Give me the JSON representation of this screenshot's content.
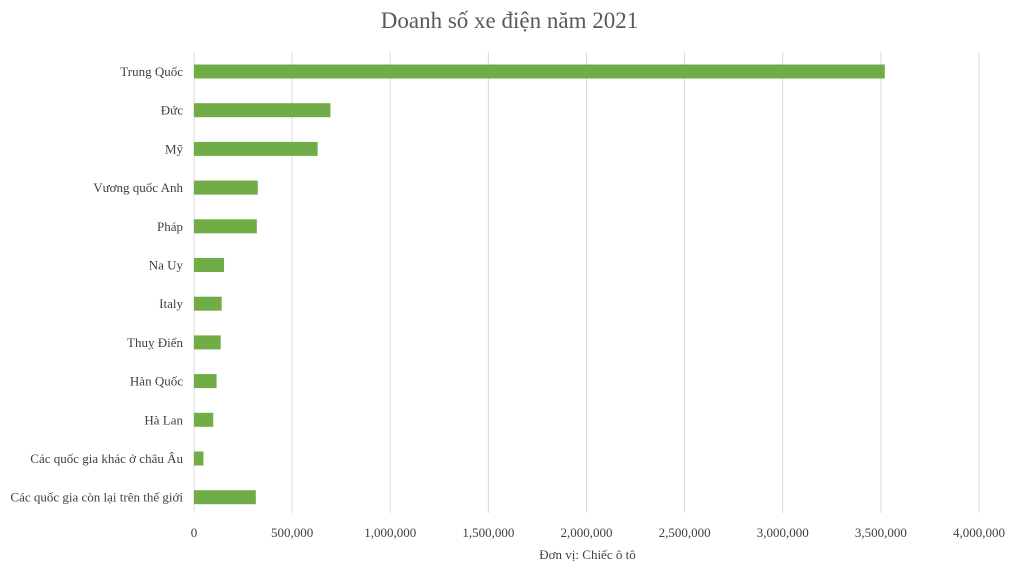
{
  "chart_data": {
    "type": "bar",
    "orientation": "horizontal",
    "title": "Doanh số xe điện năm 2021",
    "xlabel": "Đơn vị: Chiếc ô tô",
    "ylabel": "",
    "categories": [
      "Trung Quốc",
      "Đức",
      "Mỹ",
      "Vương quốc Anh",
      "Pháp",
      "Na Uy",
      "Italy",
      "Thuỵ Điển",
      "Hàn Quốc",
      "Hà Lan",
      "Các quốc gia khác ở châu Âu",
      "Các quốc gia còn lại trên thế giới"
    ],
    "values": [
      3520000,
      695000,
      630000,
      325000,
      320000,
      153000,
      141000,
      136000,
      115000,
      98000,
      48000,
      315000
    ],
    "xlim": [
      0,
      4000000
    ],
    "xticks": [
      "0",
      "500,000",
      "1,000,000",
      "1,500,000",
      "2,000,000",
      "2,500,000",
      "3,000,000",
      "3,500,000",
      "4,000,000"
    ],
    "grid": "vertical",
    "legend": "none",
    "bar_color": "#70ad47"
  }
}
